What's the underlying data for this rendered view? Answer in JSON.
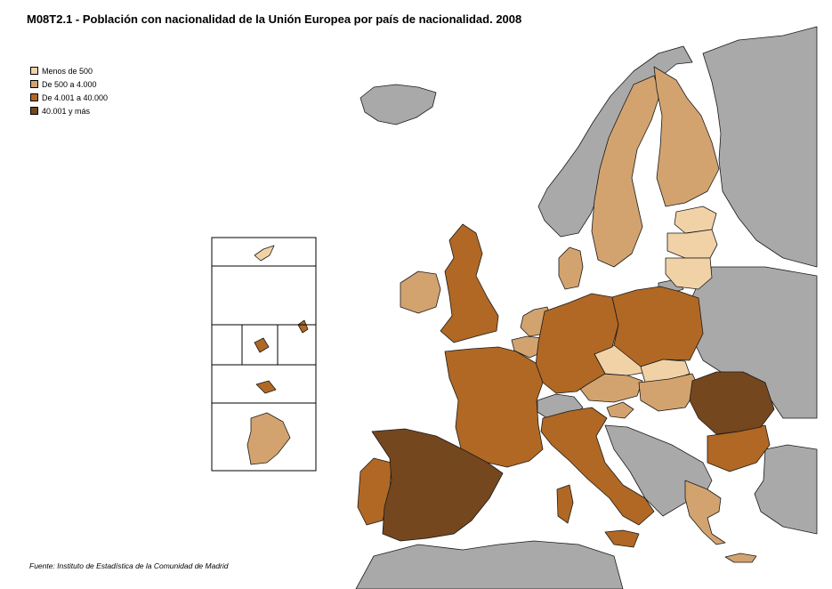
{
  "title": "M08T2.1 - Población con nacionalidad de la Unión Europea por país de nacionalidad. 2008",
  "legend": {
    "items": [
      {
        "label": "Menos de 500",
        "color": "#f1d2a7"
      },
      {
        "label": "De 500 a 4.000",
        "color": "#d3a36f"
      },
      {
        "label": "De 4.001 a 40.000",
        "color": "#b06824"
      },
      {
        "label": "40.001 y más",
        "color": "#74471f"
      }
    ]
  },
  "source": "Fuente: Instituto de Estadística de la Comunidad de Madrid",
  "colors": {
    "non_eu": "#a9a9a9",
    "sea": "#ffffff",
    "border": "#1a1a1a"
  }
}
